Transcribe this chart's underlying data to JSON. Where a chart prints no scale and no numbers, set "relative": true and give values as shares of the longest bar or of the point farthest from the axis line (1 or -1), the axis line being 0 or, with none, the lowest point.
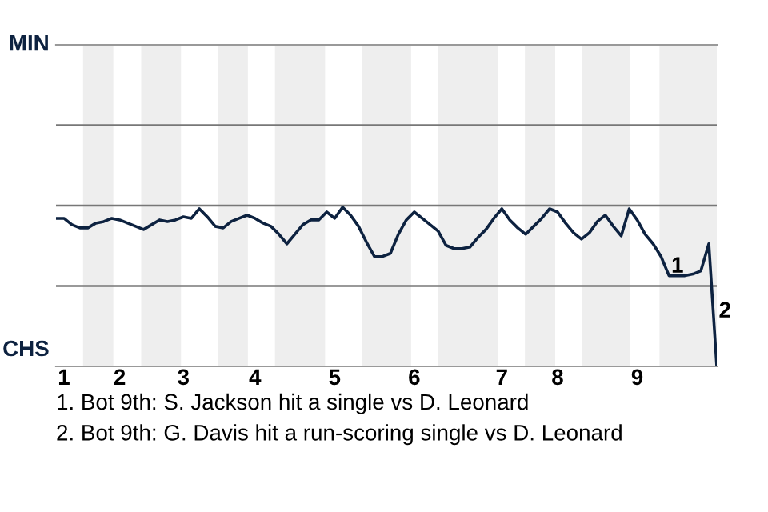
{
  "chart_data": {
    "type": "line",
    "relative": true,
    "categories": [
      null,
      "1",
      null,
      null,
      null,
      null,
      null,
      null,
      "2",
      null,
      null,
      null,
      null,
      null,
      null,
      null,
      "3",
      null,
      null,
      null,
      null,
      null,
      null,
      null,
      null,
      "4",
      null,
      null,
      null,
      null,
      null,
      null,
      null,
      null,
      null,
      "5",
      null,
      null,
      null,
      null,
      null,
      null,
      null,
      null,
      null,
      "6",
      null,
      null,
      null,
      null,
      null,
      null,
      null,
      null,
      null,
      null,
      "7",
      null,
      null,
      null,
      null,
      null,
      null,
      "8",
      null,
      null,
      null,
      null,
      null,
      null,
      null,
      null,
      null,
      "9",
      null,
      null,
      null,
      null,
      null,
      null,
      null,
      null,
      null,
      null
    ],
    "series": [
      {
        "color": "#0d2240",
        "values": [
          0.93,
          0.93,
          0.89,
          0.87,
          0.87,
          0.9,
          0.91,
          0.93,
          0.92,
          0.9,
          0.88,
          0.86,
          0.89,
          0.92,
          0.91,
          0.92,
          0.94,
          0.93,
          0.99,
          0.94,
          0.88,
          0.87,
          0.91,
          0.93,
          0.95,
          0.93,
          0.9,
          0.88,
          0.83,
          0.77,
          0.83,
          0.89,
          0.92,
          0.92,
          0.97,
          0.93,
          1,
          0.95,
          0.88,
          0.78,
          0.69,
          0.69,
          0.71,
          0.83,
          0.92,
          0.97,
          0.93,
          0.89,
          0.85,
          0.76,
          0.74,
          0.74,
          0.75,
          0.81,
          0.86,
          0.93,
          0.99,
          0.92,
          0.87,
          0.83,
          0.88,
          0.93,
          0.99,
          0.97,
          0.9,
          0.84,
          0.8,
          0.84,
          0.91,
          0.95,
          0.88,
          0.82,
          0.99,
          0.92,
          0.83,
          0.77,
          0.69,
          0.57,
          0.57,
          0.57,
          0.58,
          0.6,
          0.77,
          0
        ]
      }
    ],
    "marker": "none",
    "line_style": "solid",
    "ref_lines": [
      {
        "axis": "y",
        "value": 0.505,
        "color": "#777777"
      },
      {
        "axis": "y",
        "value": 1.01,
        "color": "#777777"
      },
      {
        "axis": "y",
        "value": 1.515,
        "color": "#777777"
      }
    ],
    "annotations": [
      "MIN",
      "CHS",
      {
        "text": "1",
        "y": 0.57
      },
      "2",
      "1. Bot 9th: S. Jackson hit a single vs D. Leonard",
      "2. Bot 9th: G. Davis hit a run-scoring single vs D. Leonard"
    ]
  }
}
